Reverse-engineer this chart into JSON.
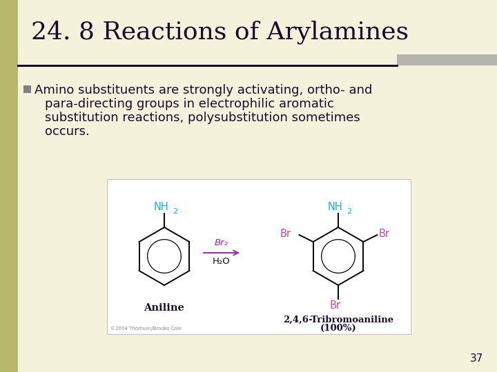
{
  "title": "24. 8 Reactions of Arylamines",
  "bullet_text_lines": [
    "Amino substituents are strongly activating, ortho- and",
    "para-directing groups in electrophilic aromatic",
    "substitution reactions, polysubstitution sometimes",
    "occurs."
  ],
  "bg_color": "#f5f2dc",
  "left_bar_color": "#b8b86a",
  "title_color": "#1a0a2e",
  "body_color": "#1a0a2e",
  "bullet_color": "#808080",
  "divider_color": "#1a0a2e",
  "divider_gray_color": "#a0a0a0",
  "page_number": "37",
  "nh2_color": "#00bcd4",
  "br_color": "#cc44aa",
  "reagent_color": "#9c27b0",
  "label_color": "#1a0a2e",
  "box_bg": "#ffffff",
  "box_border": "#c0c0c0",
  "copyright": "©2004 Thomson/Brooks Cole"
}
